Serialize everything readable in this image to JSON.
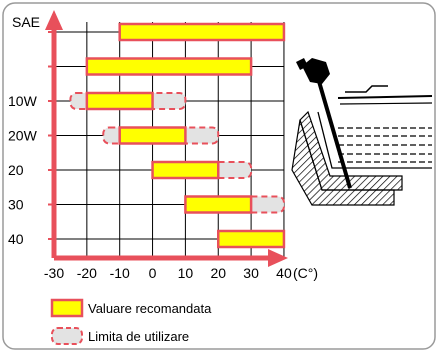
{
  "chart_data": {
    "type": "bar",
    "ylabel": "SAE",
    "xunit": "(C°)",
    "xticks": [
      -30,
      -20,
      -10,
      0,
      10,
      20,
      30,
      40
    ],
    "xlim": [
      -30,
      40
    ],
    "rows": [
      {
        "grade": "",
        "recommended": [
          -10,
          40
        ],
        "limit": null
      },
      {
        "grade": "",
        "recommended": [
          -20,
          30
        ],
        "limit": null
      },
      {
        "grade": "10W",
        "recommended": [
          -20,
          0
        ],
        "limit": [
          -25,
          10
        ]
      },
      {
        "grade": "20W",
        "recommended": [
          -10,
          10
        ],
        "limit": [
          -15,
          20
        ]
      },
      {
        "grade": "20",
        "recommended": [
          0,
          20
        ],
        "limit": [
          0,
          30
        ]
      },
      {
        "grade": "30",
        "recommended": [
          10,
          30
        ],
        "limit": [
          10,
          40
        ]
      },
      {
        "grade": "40",
        "recommended": [
          20,
          40
        ],
        "limit": null
      }
    ],
    "legend": [
      {
        "key": "recommended",
        "label": "Valuare recomandata"
      },
      {
        "key": "limit",
        "label": "Limita de utilizare"
      }
    ],
    "colors": {
      "axis": "#e8505b",
      "recommended_fill": "#ffff00",
      "recommended_stroke": "#e8505b",
      "limit_fill": "#e3e3e3",
      "limit_stroke": "#e8505b",
      "grid": "#000000",
      "frame": "#9a9a9a"
    }
  },
  "illustration": {
    "icon": "oil-dipstick-engine-icon"
  }
}
